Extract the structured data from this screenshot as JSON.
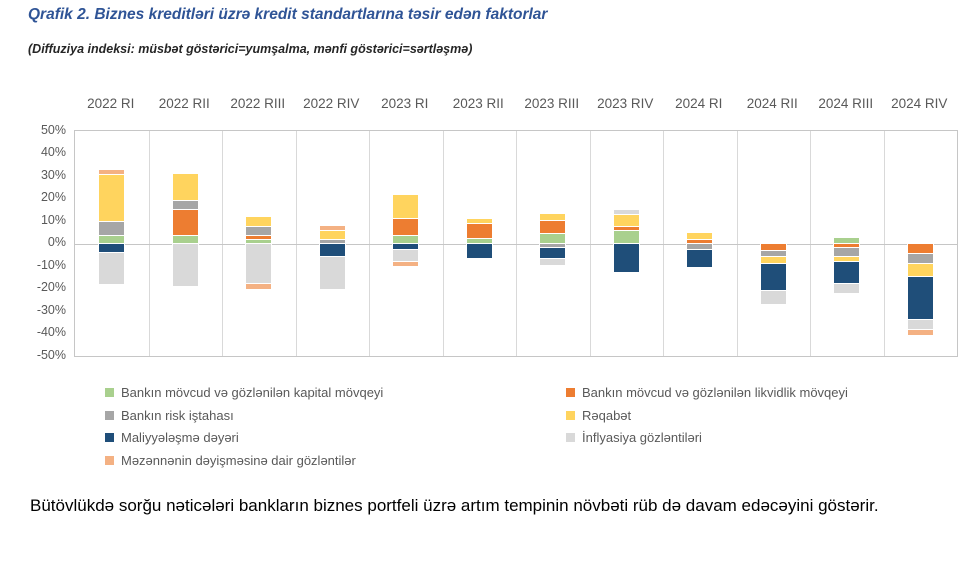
{
  "title": "Qrafik 2. Biznes kreditləri üzrə kredit standartlarına təsir edən faktorlar",
  "subtitle": "(Diffuziya indeksi: müsbət göstərici=yumşalma, mənfi göstərici=sərtləşmə)",
  "footer_text": "Bütövlükdə sorğu nəticələri bankların biznes portfeli üzrə artım tempinin növbəti rüb də davam edəcəyini göstərir.",
  "chart_data": {
    "type": "bar",
    "stacked": true,
    "title": "Qrafik 2. Biznes kreditləri üzrə kredit standartlarına təsir edən faktorlar",
    "subtitle": "(Diffuziya indeksi: müsbət göstərici=yumşalma, mənfi göstərici=sərtləşmə)",
    "categories": [
      "2022 RI",
      "2022 RII",
      "2022 RIII",
      "2022 RIV",
      "2023 RI",
      "2023 RII",
      "2023 RIII",
      "2023 RIV",
      "2024 RI",
      "2024 RII",
      "2024 RIII",
      "2024 RIV"
    ],
    "y_ticks": [
      "50%",
      "40%",
      "30%",
      "20%",
      "10%",
      "0%",
      "-10%",
      "-20%",
      "-30%",
      "-40%",
      "-50%"
    ],
    "ylim": [
      -50,
      50
    ],
    "ytick_step": 10,
    "unit": "%",
    "grid": "vertical category separators, zero line, outer box",
    "legend_position": "bottom, two columns",
    "series": [
      {
        "name": "Bankın mövcud və gözlənilən kapital mövqeyi",
        "color": "#A9D08E",
        "values": [
          4,
          4,
          2,
          0,
          4,
          2.5,
          4.5,
          6,
          0,
          0,
          2.5,
          0
        ]
      },
      {
        "name": "Bankın mövcud və gözlənilən likvidlik mövqeyi",
        "color": "#ED7D31",
        "values": [
          0,
          11.5,
          2,
          0,
          7.5,
          6.5,
          6,
          2,
          2,
          -3.5,
          -2,
          -4.5
        ]
      },
      {
        "name": "Bankın risk iştahası",
        "color": "#A6A6A6",
        "values": [
          6,
          4,
          4,
          2,
          0,
          0,
          -2,
          0,
          -3,
          -2.5,
          -4,
          -4.5
        ]
      },
      {
        "name": "Rəqabət",
        "color": "#FFD45E",
        "values": [
          21,
          11.5,
          4,
          4,
          10,
          2,
          2.5,
          5,
          2.5,
          -3,
          -2,
          -6
        ]
      },
      {
        "name": "Maliyyələşmə dəyəri",
        "color": "#1F4E79",
        "values": [
          -4,
          0,
          0,
          -6,
          -3,
          -6.5,
          -5,
          -12.5,
          -7.5,
          -12,
          -10,
          -19
        ]
      },
      {
        "name": "İnflyasiya gözləntiləri",
        "color": "#D9D9D9",
        "values": [
          -14,
          -19,
          -18,
          -14,
          -5,
          0,
          -2.5,
          2,
          0,
          -6,
          -4,
          -4.5
        ]
      },
      {
        "name": "Məzənnənin dəyişməsinə dair gözləntilər",
        "color": "#F4B183",
        "values": [
          1.5,
          0,
          -2,
          2,
          -2,
          0,
          0,
          0,
          0,
          0,
          0,
          -2
        ]
      }
    ],
    "legend_columns": [
      [
        0,
        2,
        4,
        6
      ],
      [
        1,
        3,
        5
      ]
    ]
  }
}
